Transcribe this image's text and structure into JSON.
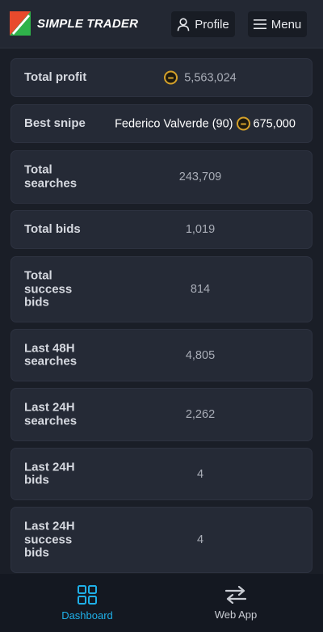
{
  "header": {
    "brand": "SIMPLE TRADER",
    "profile_label": "Profile",
    "menu_label": "Menu"
  },
  "stats": [
    {
      "label": "Total profit",
      "value": "5,563,024"
    },
    {
      "label": "Best snipe",
      "player": "Federico Valverde (90)",
      "value": "675,000"
    },
    {
      "label": "Total searches",
      "value": "243,709"
    },
    {
      "label": "Total bids",
      "value": "1,019"
    },
    {
      "label": "Total success bids",
      "value": "814"
    },
    {
      "label": "Last 48H searches",
      "value": "4,805"
    },
    {
      "label": "Last 24H searches",
      "value": "2,262"
    },
    {
      "label": "Last 24H bids",
      "value": "4"
    },
    {
      "label": "Last 24H success bids",
      "value": "4"
    }
  ],
  "nav": {
    "dashboard_label": "Dashboard",
    "webapp_label": "Web App"
  },
  "colors": {
    "accent": "#1fb0e8",
    "coin": "#d5a12a",
    "card": "#252a36",
    "background": "#1a1e27"
  },
  "icons": [
    "logo-icon",
    "user-icon",
    "hamburger-icon",
    "coin-icon",
    "dashboard-icon",
    "transfer-arrows-icon"
  ]
}
